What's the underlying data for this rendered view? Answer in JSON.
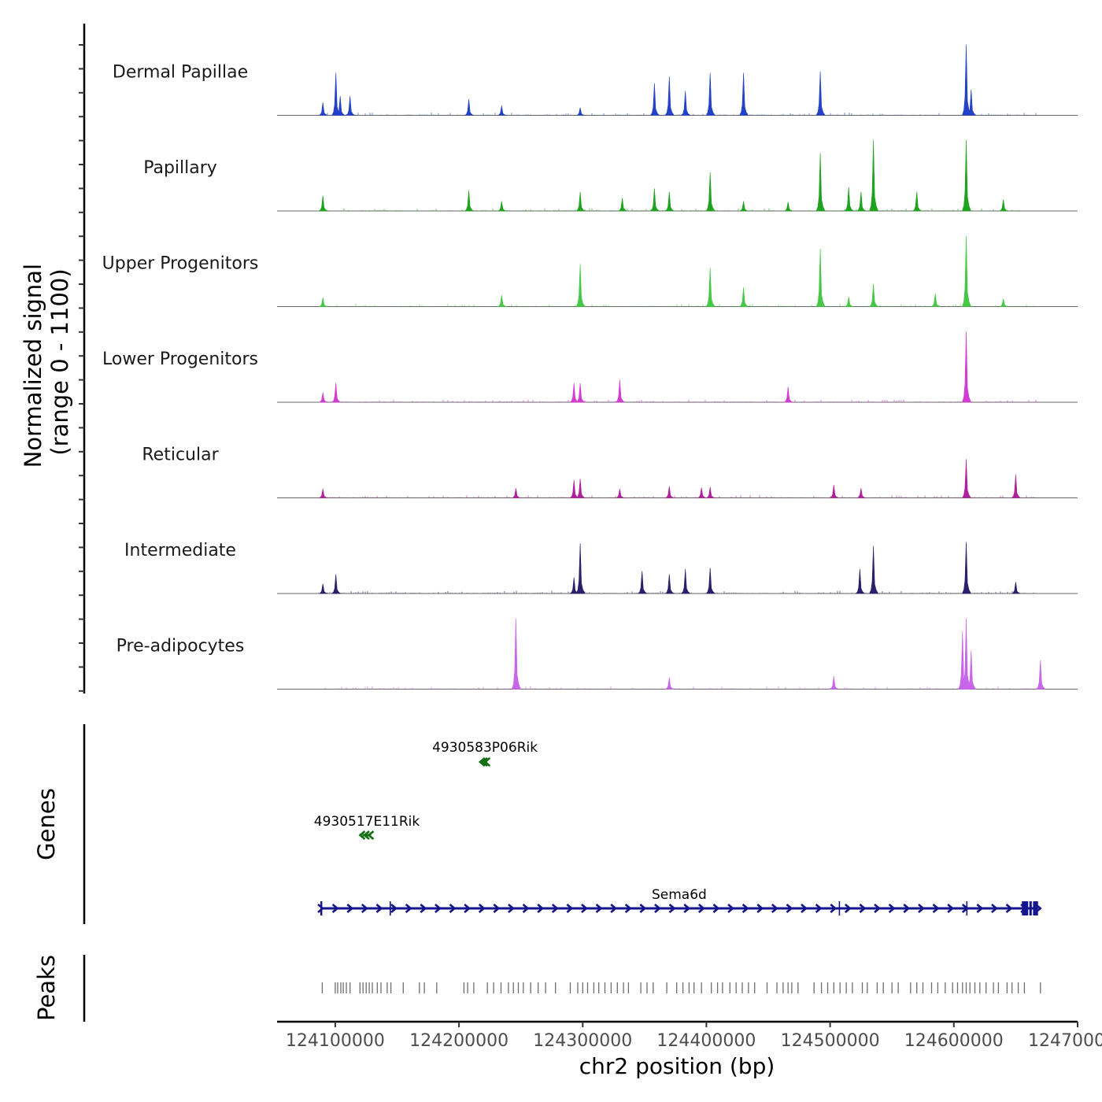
{
  "chart_data": {
    "type": "area",
    "title": "",
    "region": "chr2",
    "xlabel": "chr2 position (bp)",
    "ylabel": "Normalized signal",
    "ylabel_range": "(range 0 - 1100)",
    "ylim": [
      0,
      1100
    ],
    "xlim": [
      124053000,
      124700000
    ],
    "x_ticks": [
      124100000,
      124200000,
      124300000,
      124400000,
      124500000,
      124600000,
      124700000
    ],
    "x_tick_labels": [
      "124100000",
      "124200000",
      "124300000",
      "124400000",
      "124500000",
      "124600000",
      "124700000"
    ],
    "colors": {
      "dermal_papillae": "#2342c8",
      "papillary": "#1fa31f",
      "upper_progenitors": "#45c845",
      "lower_progenitors": "#d23cd2",
      "reticular": "#b0209c",
      "intermediate": "#2a1f6b",
      "pre_adipocytes": "#c865e8",
      "gene_plus": "#14148c",
      "gene_minus": "#127012",
      "peak": "#6e6e6e"
    },
    "series": [
      {
        "name": "Dermal Papillae",
        "color_key": "dermal_papillae",
        "values": [
          [
            124090000,
            200
          ],
          [
            124100500,
            660
          ],
          [
            124104000,
            300
          ],
          [
            124112000,
            300
          ],
          [
            124208000,
            250
          ],
          [
            124234500,
            150
          ],
          [
            124298000,
            120
          ],
          [
            124358000,
            500
          ],
          [
            124370000,
            600
          ],
          [
            124383000,
            380
          ],
          [
            124403000,
            660
          ],
          [
            124430000,
            660
          ],
          [
            124492000,
            680
          ],
          [
            124610000,
            1100
          ],
          [
            124614000,
            400
          ]
        ]
      },
      {
        "name": "Papillary",
        "color_key": "papillary",
        "values": [
          [
            124090000,
            240
          ],
          [
            124208000,
            320
          ],
          [
            124234500,
            150
          ],
          [
            124298000,
            300
          ],
          [
            124332000,
            200
          ],
          [
            124358000,
            350
          ],
          [
            124370000,
            300
          ],
          [
            124403000,
            600
          ],
          [
            124430000,
            150
          ],
          [
            124466000,
            140
          ],
          [
            124492000,
            900
          ],
          [
            124515000,
            370
          ],
          [
            124525000,
            300
          ],
          [
            124535000,
            1100
          ],
          [
            124570000,
            300
          ],
          [
            124610000,
            1100
          ],
          [
            124640000,
            180
          ]
        ]
      },
      {
        "name": "Upper Progenitors",
        "color_key": "upper_progenitors",
        "values": [
          [
            124090000,
            140
          ],
          [
            124234500,
            180
          ],
          [
            124298000,
            660
          ],
          [
            124403000,
            600
          ],
          [
            124430000,
            300
          ],
          [
            124492000,
            900
          ],
          [
            124515000,
            150
          ],
          [
            124535000,
            350
          ],
          [
            124585000,
            200
          ],
          [
            124610000,
            1100
          ],
          [
            124640000,
            120
          ]
        ]
      },
      {
        "name": "Lower Progenitors",
        "color_key": "lower_progenitors",
        "values": [
          [
            124090000,
            150
          ],
          [
            124100500,
            300
          ],
          [
            124293000,
            300
          ],
          [
            124298000,
            300
          ],
          [
            124330000,
            350
          ],
          [
            124466000,
            240
          ],
          [
            124610000,
            1100
          ]
        ]
      },
      {
        "name": "Reticular",
        "color_key": "reticular",
        "values": [
          [
            124090000,
            140
          ],
          [
            124246000,
            150
          ],
          [
            124293000,
            280
          ],
          [
            124298000,
            300
          ],
          [
            124330000,
            140
          ],
          [
            124370000,
            180
          ],
          [
            124396000,
            160
          ],
          [
            124403000,
            170
          ],
          [
            124503000,
            200
          ],
          [
            124525000,
            150
          ],
          [
            124610000,
            600
          ],
          [
            124650000,
            360
          ]
        ]
      },
      {
        "name": "Intermediate",
        "color_key": "intermediate",
        "values": [
          [
            124090000,
            150
          ],
          [
            124100500,
            300
          ],
          [
            124293000,
            250
          ],
          [
            124298000,
            780
          ],
          [
            124348000,
            350
          ],
          [
            124370000,
            300
          ],
          [
            124383000,
            380
          ],
          [
            124403000,
            400
          ],
          [
            124524000,
            380
          ],
          [
            124535000,
            740
          ],
          [
            124610000,
            800
          ],
          [
            124650000,
            180
          ]
        ]
      },
      {
        "name": "Pre-adipocytes",
        "color_key": "pre_adipocytes",
        "values": [
          [
            124246000,
            1100
          ],
          [
            124370000,
            180
          ],
          [
            124503000,
            200
          ],
          [
            124607000,
            900
          ],
          [
            124610000,
            1100
          ],
          [
            124614000,
            600
          ],
          [
            124670000,
            450
          ]
        ]
      }
    ],
    "genes_track_label": "Genes",
    "peaks_track_label": "Peaks",
    "genes": [
      {
        "name": "4930583P06Rik",
        "start": 124219000,
        "end": 124223000,
        "strand": "-",
        "row": 0,
        "color_key": "gene_minus"
      },
      {
        "name": "4930517E11Rik",
        "start": 124122000,
        "end": 124129000,
        "strand": "-",
        "row": 1,
        "color_key": "gene_minus"
      },
      {
        "name": "Sema6d",
        "start": 124088000,
        "end": 124668000,
        "strand": "+",
        "row": 2,
        "color_key": "gene_plus",
        "exons": [
          [
            124088000,
            124089500
          ],
          [
            124144000,
            124145000
          ],
          [
            124507000,
            124508000
          ],
          [
            124610000,
            124611000
          ],
          [
            124655000,
            124660000
          ],
          [
            124661000,
            124663000
          ],
          [
            124664000,
            124668000
          ]
        ]
      }
    ],
    "peaks": [
      124089500,
      124100000,
      124102000,
      124104500,
      124106500,
      124109000,
      124112000,
      124120000,
      124122500,
      124125000,
      124127500,
      124130000,
      124134000,
      124137000,
      124142000,
      124145000,
      124155000,
      124168000,
      124172000,
      124182000,
      124204000,
      124207000,
      124212000,
      124223000,
      124228000,
      124234000,
      124240000,
      124244000,
      124248000,
      124252000,
      124258000,
      124264000,
      124270000,
      124278000,
      124290000,
      124296000,
      124300000,
      124304000,
      124309000,
      124313000,
      124318000,
      124323000,
      124328000,
      124333000,
      124337000,
      124347000,
      124352000,
      124357000,
      124368000,
      124376000,
      124381000,
      124386000,
      124390000,
      124396000,
      124404000,
      124409000,
      124413000,
      124419000,
      124424000,
      124429000,
      124434000,
      124439000,
      124449000,
      124457000,
      124462000,
      124466000,
      124469000,
      124474000,
      124487000,
      124493000,
      124498000,
      124503000,
      124508000,
      124513000,
      124518000,
      124526000,
      124530000,
      124538000,
      124543000,
      124550000,
      124555000,
      124565000,
      124570000,
      124575000,
      124582000,
      124587000,
      124593000,
      124599000,
      124603000,
      124607000,
      124610000,
      124613000,
      124617000,
      124621000,
      124626000,
      124632000,
      124636000,
      124643000,
      124647000,
      124652000,
      124657000,
      124670000
    ]
  }
}
